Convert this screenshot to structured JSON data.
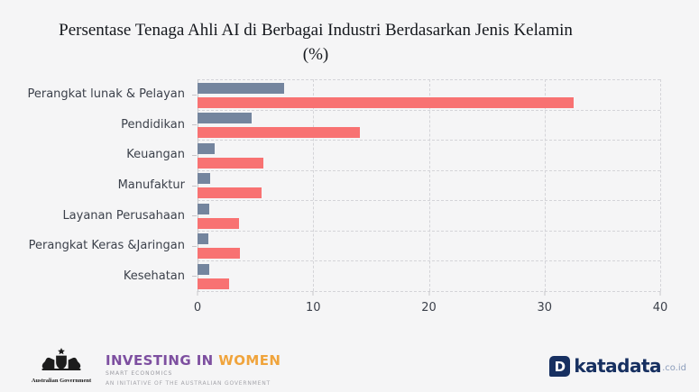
{
  "title": {
    "line1": "Persentase Tenaga Ahli AI di Berbagai Industri Berdasarkan Jenis Kelamin",
    "line2": "(%)"
  },
  "chart_data": {
    "type": "bar",
    "orientation": "horizontal",
    "title": "Persentase Tenaga Ahli AI di Berbagai Industri Berdasarkan Jenis Kelamin (%)",
    "categories": [
      "Perangkat lunak & Pelayan",
      "Pendidikan",
      "Keuangan",
      "Manufaktur",
      "Layanan Perusahaan",
      "Perangkat Keras &Jaringan",
      "Kesehatan"
    ],
    "series": [
      {
        "name": "series-1-blue",
        "color": "#74859e",
        "values": [
          7.5,
          4.7,
          1.5,
          1.1,
          1.0,
          0.9,
          1.0
        ]
      },
      {
        "name": "series-2-red",
        "color": "#f87272",
        "values": [
          32.5,
          14.0,
          5.7,
          5.5,
          3.6,
          3.7,
          2.7
        ]
      }
    ],
    "xlim": [
      0,
      40
    ],
    "xticks": [
      0,
      10,
      20,
      30,
      40
    ],
    "xlabel": "",
    "ylabel": "",
    "grid": "dashed vertical gridlines + dashed row separators",
    "legend": "none"
  },
  "footer": {
    "australian_government": {
      "label": "Australian Government"
    },
    "investing_in_women": {
      "part1": "INVESTING IN",
      "part2": "WOMEN",
      "tagline": "SMART ECONOMICS",
      "initiative": "AN INITIATIVE OF THE AUSTRALIAN GOVERNMENT",
      "purple": "#7d4fa0",
      "orange": "#f0a43c"
    },
    "katadata": {
      "name": "katadata",
      "domain": ".co.id",
      "icon_letter": "D",
      "navy": "#173061",
      "gray": "#8b9dbb"
    }
  },
  "colors": {
    "background": "#f5f5f6",
    "bar_blue": "#74859e",
    "bar_red": "#f87272",
    "grid": "#d4d4d8",
    "axis_text": "#3c414b"
  }
}
